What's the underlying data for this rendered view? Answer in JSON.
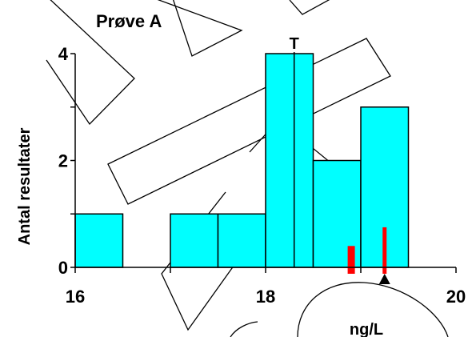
{
  "chart_data": {
    "type": "bar",
    "title": "Prøve A",
    "xlabel": "ng/L",
    "ylabel": "Antal resultater",
    "xlim": [
      16,
      20
    ],
    "ylim": [
      0,
      4
    ],
    "x_ticks": [
      "16",
      "18",
      "20"
    ],
    "y_ticks": [
      "0",
      "2",
      "4"
    ],
    "bins": [
      {
        "start": 16.0,
        "end": 16.5,
        "count": 1
      },
      {
        "start": 16.5,
        "end": 17.0,
        "count": 0
      },
      {
        "start": 17.0,
        "end": 17.5,
        "count": 1
      },
      {
        "start": 17.5,
        "end": 18.0,
        "count": 1
      },
      {
        "start": 18.0,
        "end": 18.5,
        "count": 4
      },
      {
        "start": 18.5,
        "end": 19.0,
        "count": 2
      },
      {
        "start": 19.0,
        "end": 19.5,
        "count": 3
      }
    ],
    "target": {
      "label": "T",
      "value": 18.3
    },
    "markers": [
      {
        "name": "red-bar-short",
        "x": 18.9,
        "y_top": 0.4
      },
      {
        "name": "red-bar-tall",
        "x": 19.25,
        "y_top": 0.75
      }
    ],
    "triangle_marker_x": 19.25,
    "colors": {
      "fill": "#00ffff",
      "stroke": "#000000",
      "marker": "#ff0000"
    },
    "grid": false,
    "legend": "none"
  }
}
